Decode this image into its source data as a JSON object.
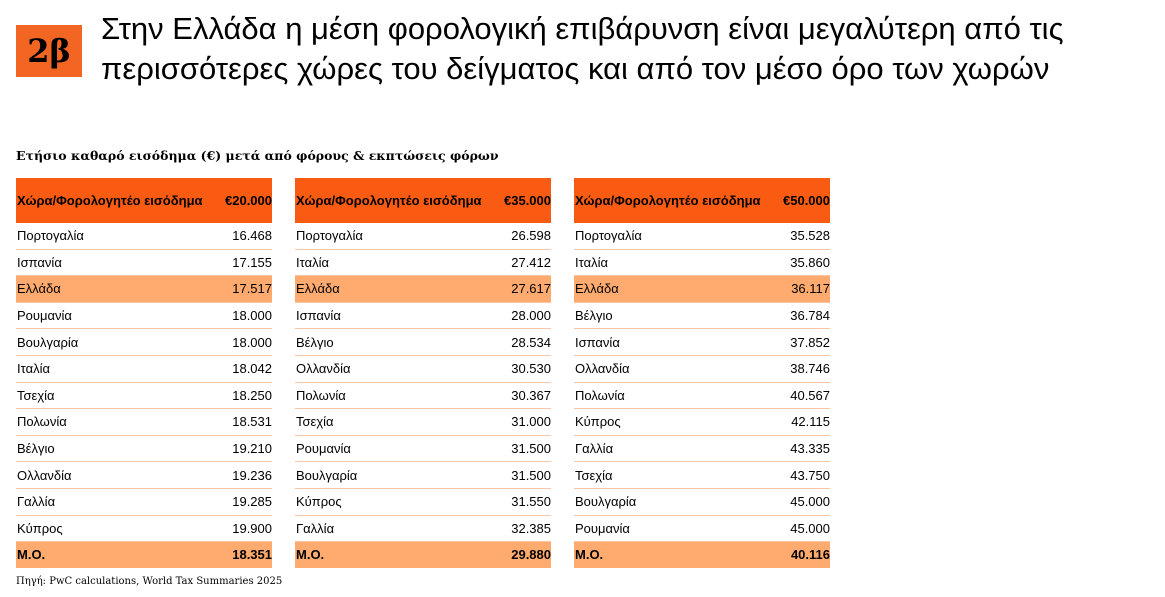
{
  "badge": "2β",
  "title": "Στην Ελλάδα η μέση φορολογική επιβάρυνση είναι μεγαλύτερη από τις περισσότερες χώρες του δείγματος και από τον μέσο όρο των χωρών",
  "subtitle": "Ετήσιο καθαρό εισόδημα (€) μετά από φόρους & εκπτώσεις φόρων",
  "source": "Πηγή: PwC calculations, World Tax Summaries 2025",
  "colors": {
    "header": "#f95b12",
    "highlight": "#ffaa6e",
    "badge": "#f26522"
  },
  "tables": [
    {
      "col1": "Χώρα/Φορολογητέο εισόδημα",
      "col2": "€20.000",
      "rows": [
        {
          "country": "Πορτογαλία",
          "value": "16.468"
        },
        {
          "country": "Ισπανία",
          "value": "17.155"
        },
        {
          "country": "Ελλάδα",
          "value": "17.517",
          "highlight": true
        },
        {
          "country": "Ρουμανία",
          "value": "18.000"
        },
        {
          "country": "Βουλγαρία",
          "value": "18.000"
        },
        {
          "country": "Ιταλία",
          "value": "18.042"
        },
        {
          "country": "Τσεχία",
          "value": "18.250"
        },
        {
          "country": "Πολωνία",
          "value": "18.531"
        },
        {
          "country": "Βέλγιο",
          "value": "19.210"
        },
        {
          "country": "Ολλανδία",
          "value": "19.236"
        },
        {
          "country": "Γαλλία",
          "value": "19.285"
        },
        {
          "country": "Κύπρος",
          "value": "19.900"
        }
      ],
      "avg_label": "Μ.Ο.",
      "avg_value": "18.351"
    },
    {
      "col1": "Χώρα/Φορολογητέο εισόδημα",
      "col2": "€35.000",
      "rows": [
        {
          "country": "Πορτογαλία",
          "value": "26.598"
        },
        {
          "country": "Ιταλία",
          "value": "27.412"
        },
        {
          "country": "Ελλάδα",
          "value": "27.617",
          "highlight": true
        },
        {
          "country": "Ισπανία",
          "value": "28.000"
        },
        {
          "country": "Βέλγιο",
          "value": "28.534"
        },
        {
          "country": "Ολλανδία",
          "value": "30.530"
        },
        {
          "country": "Πολωνία",
          "value": "30.367"
        },
        {
          "country": "Τσεχία",
          "value": "31.000"
        },
        {
          "country": "Ρουμανία",
          "value": "31.500"
        },
        {
          "country": "Βουλγαρία",
          "value": "31.500"
        },
        {
          "country": "Κύπρος",
          "value": "31.550"
        },
        {
          "country": "Γαλλία",
          "value": "32.385"
        }
      ],
      "avg_label": "Μ.Ο.",
      "avg_value": "29.880"
    },
    {
      "col1": "Χώρα/Φορολογητέο εισόδημα",
      "col2": "€50.000",
      "rows": [
        {
          "country": "Πορτογαλία",
          "value": "35.528"
        },
        {
          "country": "Ιταλία",
          "value": "35.860"
        },
        {
          "country": "Ελλάδα",
          "value": "36.117",
          "highlight": true
        },
        {
          "country": "Βέλγιο",
          "value": "36.784"
        },
        {
          "country": "Ισπανία",
          "value": "37.852"
        },
        {
          "country": "Ολλανδία",
          "value": "38.746"
        },
        {
          "country": "Πολωνία",
          "value": "40.567"
        },
        {
          "country": "Κύπρος",
          "value": "42.115"
        },
        {
          "country": "Γαλλία",
          "value": "43.335"
        },
        {
          "country": "Τσεχία",
          "value": "43.750"
        },
        {
          "country": "Βουλγαρία",
          "value": "45.000"
        },
        {
          "country": "Ρουμανία",
          "value": "45.000"
        }
      ],
      "avg_label": "Μ.Ο.",
      "avg_value": "40.116"
    }
  ]
}
